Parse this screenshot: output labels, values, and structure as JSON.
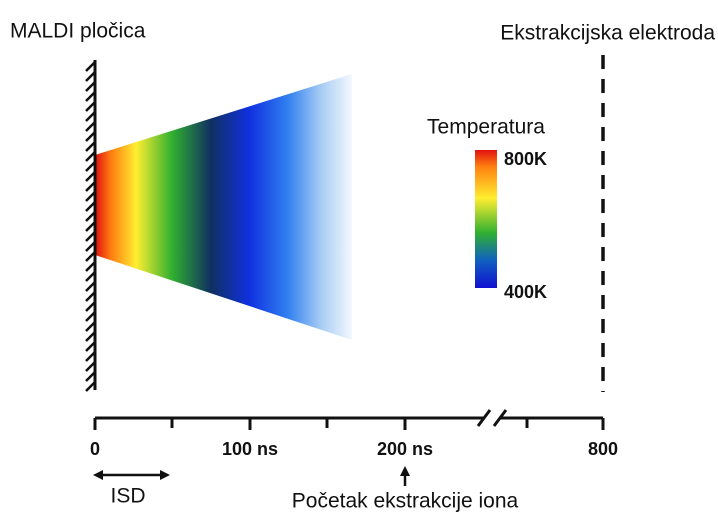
{
  "labels": {
    "plate": "MALDI pločica",
    "electrode": "Ekstrakcijska elektroda"
  },
  "legend": {
    "title": "Temperatura",
    "high": "800K",
    "low": "400K"
  },
  "axis": {
    "ticks": [
      "0",
      "100 ns",
      "200 ns",
      "800"
    ],
    "isd": "ISD",
    "extraction": "Početak ekstrakcije iona"
  }
}
